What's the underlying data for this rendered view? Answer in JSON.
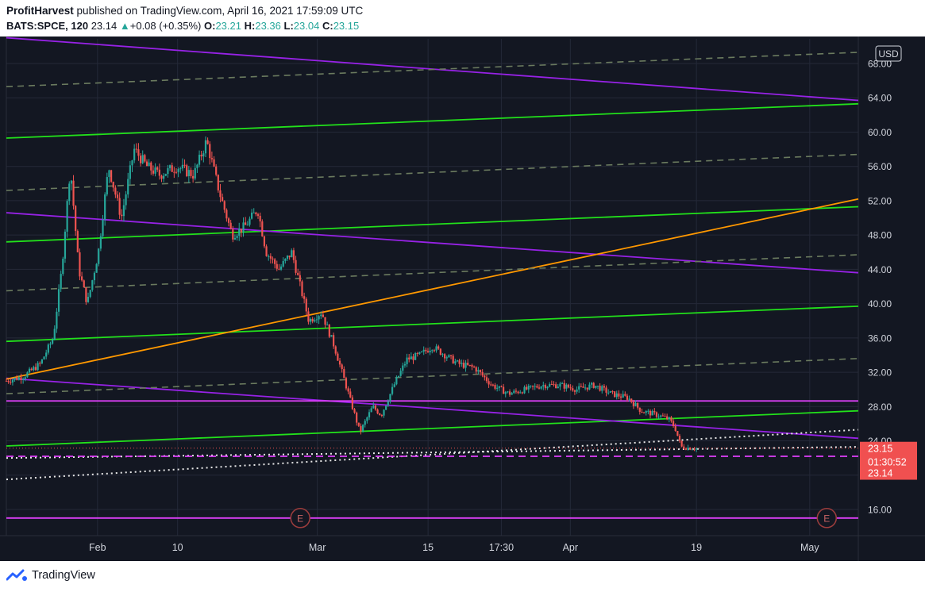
{
  "header": {
    "author": "ProfitHarvest",
    "published": "published on TradingView.com, April 16, 2021 17:59:09 UTC",
    "symbol": "BATS:SPCE, 120",
    "last": "23.14",
    "arrow": "▲",
    "change": "+0.08 (+0.35%)",
    "o_label": "O:",
    "o_value": "23.21",
    "h_label": "H:",
    "h_value": "23.36",
    "l_label": "L:",
    "l_value": "23.04",
    "c_label": "C:",
    "c_value": "23.15"
  },
  "footer": {
    "brand": "TradingView"
  },
  "colors": {
    "background": "#131722",
    "up": "#26a69a",
    "down": "#ef5350",
    "trend_green": "#22e11b",
    "trend_purple": "#9722e6",
    "trend_orange": "#ff9800",
    "magenta": "#e040fb",
    "mid_dash": "#6b7b5f",
    "badge": "#f05050"
  },
  "chart_data": {
    "type": "candlestick",
    "symbol": "BATS:SPCE",
    "interval": "120",
    "currency": "USD",
    "y_ticks": [
      16,
      20,
      24,
      28,
      32,
      36,
      40,
      44,
      48,
      52,
      56,
      60,
      64,
      68
    ],
    "y_tick_labels": [
      "16.00",
      "20.00",
      "24.00",
      "28.00",
      "32.00",
      "36.00",
      "40.00",
      "44.00",
      "48.00",
      "52.00",
      "56.00",
      "60.00",
      "64.00",
      "68.00"
    ],
    "x_ticks": [
      {
        "label": "Feb",
        "t": 0.107
      },
      {
        "label": "10",
        "t": 0.201
      },
      {
        "label": "Mar",
        "t": 0.365
      },
      {
        "label": "15",
        "t": 0.495
      },
      {
        "label": "17:30",
        "t": 0.581
      },
      {
        "label": "Apr",
        "t": 0.662
      },
      {
        "label": "19",
        "t": 0.81
      },
      {
        "label": "May",
        "t": 0.943
      }
    ],
    "earnings_markers": [
      {
        "label": "E",
        "t": 0.345
      },
      {
        "label": "E",
        "t": 0.963
      }
    ],
    "price_badges": [
      {
        "label": "23.15",
        "value": 23.15
      },
      {
        "label": "01:30:52",
        "value": 22.1
      },
      {
        "label": "23.14",
        "value": 20.3
      }
    ],
    "trend_lines": [
      {
        "kind": "green",
        "from": {
          "t": 0.0,
          "p": 59.3
        },
        "to": {
          "t": 1.0,
          "p": 63.3
        }
      },
      {
        "kind": "green",
        "from": {
          "t": 0.0,
          "p": 47.2
        },
        "to": {
          "t": 1.0,
          "p": 51.3
        }
      },
      {
        "kind": "green",
        "from": {
          "t": 0.0,
          "p": 35.6
        },
        "to": {
          "t": 1.0,
          "p": 39.7
        }
      },
      {
        "kind": "green",
        "from": {
          "t": 0.0,
          "p": 23.4
        },
        "to": {
          "t": 1.0,
          "p": 27.5
        }
      },
      {
        "kind": "purple",
        "from": {
          "t": 0.0,
          "p": 71.0
        },
        "to": {
          "t": 1.0,
          "p": 63.7
        }
      },
      {
        "kind": "purple",
        "from": {
          "t": 0.0,
          "p": 50.6
        },
        "to": {
          "t": 1.0,
          "p": 43.6
        }
      },
      {
        "kind": "purple",
        "from": {
          "t": 0.0,
          "p": 31.3
        },
        "to": {
          "t": 1.0,
          "p": 24.3
        }
      },
      {
        "kind": "orange",
        "from": {
          "t": 0.0,
          "p": 31.2
        },
        "to": {
          "t": 1.0,
          "p": 52.2
        }
      },
      {
        "kind": "mid_dash",
        "from": {
          "t": 0.0,
          "p": 65.3
        },
        "to": {
          "t": 1.0,
          "p": 69.3
        }
      },
      {
        "kind": "mid_dash",
        "from": {
          "t": 0.0,
          "p": 53.2
        },
        "to": {
          "t": 1.0,
          "p": 57.4
        }
      },
      {
        "kind": "mid_dash",
        "from": {
          "t": 0.0,
          "p": 41.5
        },
        "to": {
          "t": 1.0,
          "p": 45.7
        }
      },
      {
        "kind": "mid_dash",
        "from": {
          "t": 0.0,
          "p": 29.5
        },
        "to": {
          "t": 1.0,
          "p": 33.6
        }
      },
      {
        "kind": "dotted_white",
        "from": {
          "t": 0.0,
          "p": 19.5
        },
        "to": {
          "t": 1.0,
          "p": 25.3
        }
      },
      {
        "kind": "dotted_white",
        "from": {
          "t": 0.0,
          "p": 22.0
        },
        "to": {
          "t": 1.0,
          "p": 23.3
        }
      },
      {
        "kind": "horiz_magenta",
        "from": {
          "t": 0.0,
          "p": 28.65
        },
        "to": {
          "t": 1.0,
          "p": 28.65
        }
      },
      {
        "kind": "horiz_magenta_dash",
        "from": {
          "t": 0.0,
          "p": 22.2
        },
        "to": {
          "t": 1.0,
          "p": 22.2
        }
      },
      {
        "kind": "horiz_magenta",
        "from": {
          "t": 0.0,
          "p": 15.0
        },
        "to": {
          "t": 1.0,
          "p": 15.0
        }
      }
    ],
    "price_path": [
      [
        0.0,
        31.0
      ],
      [
        0.02,
        31.5
      ],
      [
        0.04,
        33.0
      ],
      [
        0.055,
        36.0
      ],
      [
        0.065,
        44.0
      ],
      [
        0.075,
        56.0
      ],
      [
        0.085,
        44.0
      ],
      [
        0.095,
        40.0
      ],
      [
        0.108,
        46.0
      ],
      [
        0.12,
        56.0
      ],
      [
        0.135,
        50.0
      ],
      [
        0.15,
        58.0
      ],
      [
        0.165,
        56.0
      ],
      [
        0.18,
        55.0
      ],
      [
        0.2,
        56.0
      ],
      [
        0.22,
        55.0
      ],
      [
        0.235,
        59.0
      ],
      [
        0.25,
        53.0
      ],
      [
        0.265,
        48.0
      ],
      [
        0.28,
        49.0
      ],
      [
        0.295,
        51.0
      ],
      [
        0.305,
        46.0
      ],
      [
        0.32,
        44.0
      ],
      [
        0.335,
        46.0
      ],
      [
        0.345,
        42.0
      ],
      [
        0.355,
        38.0
      ],
      [
        0.37,
        39.0
      ],
      [
        0.385,
        35.0
      ],
      [
        0.4,
        30.0
      ],
      [
        0.415,
        25.0
      ],
      [
        0.43,
        28.0
      ],
      [
        0.44,
        27.0
      ],
      [
        0.455,
        30.5
      ],
      [
        0.47,
        33.5
      ],
      [
        0.485,
        34.0
      ],
      [
        0.5,
        35.0
      ],
      [
        0.515,
        34.0
      ],
      [
        0.53,
        33.0
      ],
      [
        0.55,
        32.5
      ],
      [
        0.57,
        30.5
      ],
      [
        0.59,
        29.5
      ],
      [
        0.61,
        30.0
      ],
      [
        0.63,
        30.5
      ],
      [
        0.65,
        30.5
      ],
      [
        0.67,
        30.0
      ],
      [
        0.69,
        30.5
      ],
      [
        0.71,
        29.5
      ],
      [
        0.73,
        29.0
      ],
      [
        0.745,
        27.5
      ],
      [
        0.765,
        27.0
      ],
      [
        0.778,
        26.5
      ],
      [
        0.785,
        25.5
      ],
      [
        0.792,
        23.3
      ],
      [
        0.8,
        23.2
      ],
      [
        0.81,
        23.15
      ]
    ]
  }
}
